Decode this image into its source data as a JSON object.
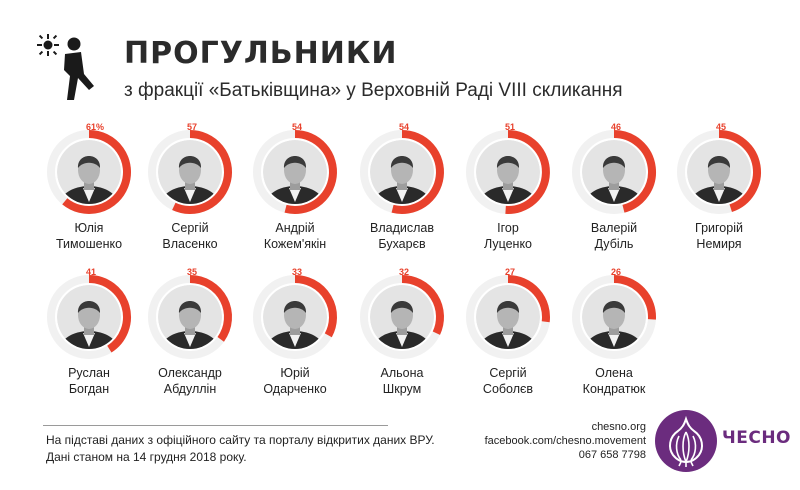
{
  "header": {
    "icon": "truant-runner-icon",
    "title": "ПРОГУЛЬНИКИ",
    "subtitle": "з фракції «Батьківщина» у Верховній Раді VIII  скликання"
  },
  "colors": {
    "accent": "#e8412c",
    "text": "#222222",
    "brand": "#6b2c7e"
  },
  "deputies": [
    {
      "label": "61%",
      "value": 61,
      "first": "Юлія",
      "last": "Тимошенко"
    },
    {
      "label": "57",
      "value": 57,
      "first": "Сергій",
      "last": "Власенко"
    },
    {
      "label": "54",
      "value": 54,
      "first": "Андрій",
      "last": "Кожем'якін"
    },
    {
      "label": "54",
      "value": 54,
      "first": "Владислав",
      "last": "Бухарєв"
    },
    {
      "label": "51",
      "value": 51,
      "first": "Ігор",
      "last": "Луценко"
    },
    {
      "label": "46",
      "value": 46,
      "first": "Валерій",
      "last": "Дубіль"
    },
    {
      "label": "45",
      "value": 45,
      "first": "Григорій",
      "last": "Немиря"
    },
    {
      "label": "41",
      "value": 41,
      "first": "Руслан",
      "last": "Богдан"
    },
    {
      "label": "35",
      "value": 35,
      "first": "Олександр",
      "last": "Абдуллін"
    },
    {
      "label": "33",
      "value": 33,
      "first": "Юрій",
      "last": "Одарченко"
    },
    {
      "label": "32",
      "value": 32,
      "first": "Альона",
      "last": "Шкрум"
    },
    {
      "label": "27",
      "value": 27,
      "first": "Сергій",
      "last": "Соболєв"
    },
    {
      "label": "26",
      "value": 26,
      "first": "Олена",
      "last": "Кондратюк"
    }
  ],
  "footer": {
    "source_line1": "На підставі даних з офіційного сайту та порталу відкритих даних ВРУ.",
    "source_line2": "Дані станом на 14 грудня 2018 року.",
    "website": "chesno.org",
    "facebook": "facebook.com/chesno.movement",
    "phone": "067 658 7798",
    "logo": "chesno-garlic-logo",
    "brand": "ЧЕСНО"
  }
}
